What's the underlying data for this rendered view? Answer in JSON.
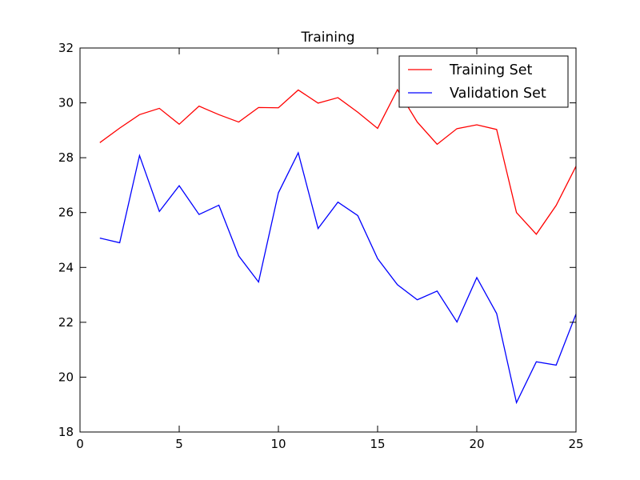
{
  "chart_data": {
    "type": "line",
    "title": "Training",
    "xlabel": "",
    "ylabel": "",
    "xlim": [
      0,
      25
    ],
    "ylim": [
      18,
      32
    ],
    "xticks": [
      0,
      5,
      10,
      15,
      20,
      25
    ],
    "yticks": [
      18,
      20,
      22,
      24,
      26,
      28,
      30,
      32
    ],
    "grid": false,
    "legend_position": "top-right",
    "x": [
      1,
      2,
      3,
      4,
      5,
      6,
      7,
      8,
      9,
      10,
      11,
      12,
      13,
      14,
      15,
      16,
      17,
      18,
      19,
      20,
      21,
      22,
      23,
      24,
      25
    ],
    "series": [
      {
        "name": "Training Set",
        "color": "#ff0000",
        "values": [
          28.55,
          29.08,
          29.57,
          29.8,
          29.22,
          29.88,
          29.57,
          29.3,
          29.83,
          29.82,
          30.47,
          29.99,
          30.19,
          29.66,
          29.07,
          30.48,
          29.3,
          28.49,
          29.06,
          29.2,
          29.03,
          26.0,
          25.21,
          26.26,
          27.69
        ]
      },
      {
        "name": "Validation Set",
        "color": "#0000ff",
        "values": [
          25.07,
          24.9,
          28.08,
          26.04,
          26.98,
          25.93,
          26.27,
          24.42,
          23.47,
          26.72,
          28.18,
          25.42,
          26.38,
          25.89,
          24.32,
          23.37,
          22.82,
          23.14,
          22.01,
          23.63,
          22.32,
          19.07,
          20.56,
          20.44,
          22.3
        ]
      }
    ]
  }
}
